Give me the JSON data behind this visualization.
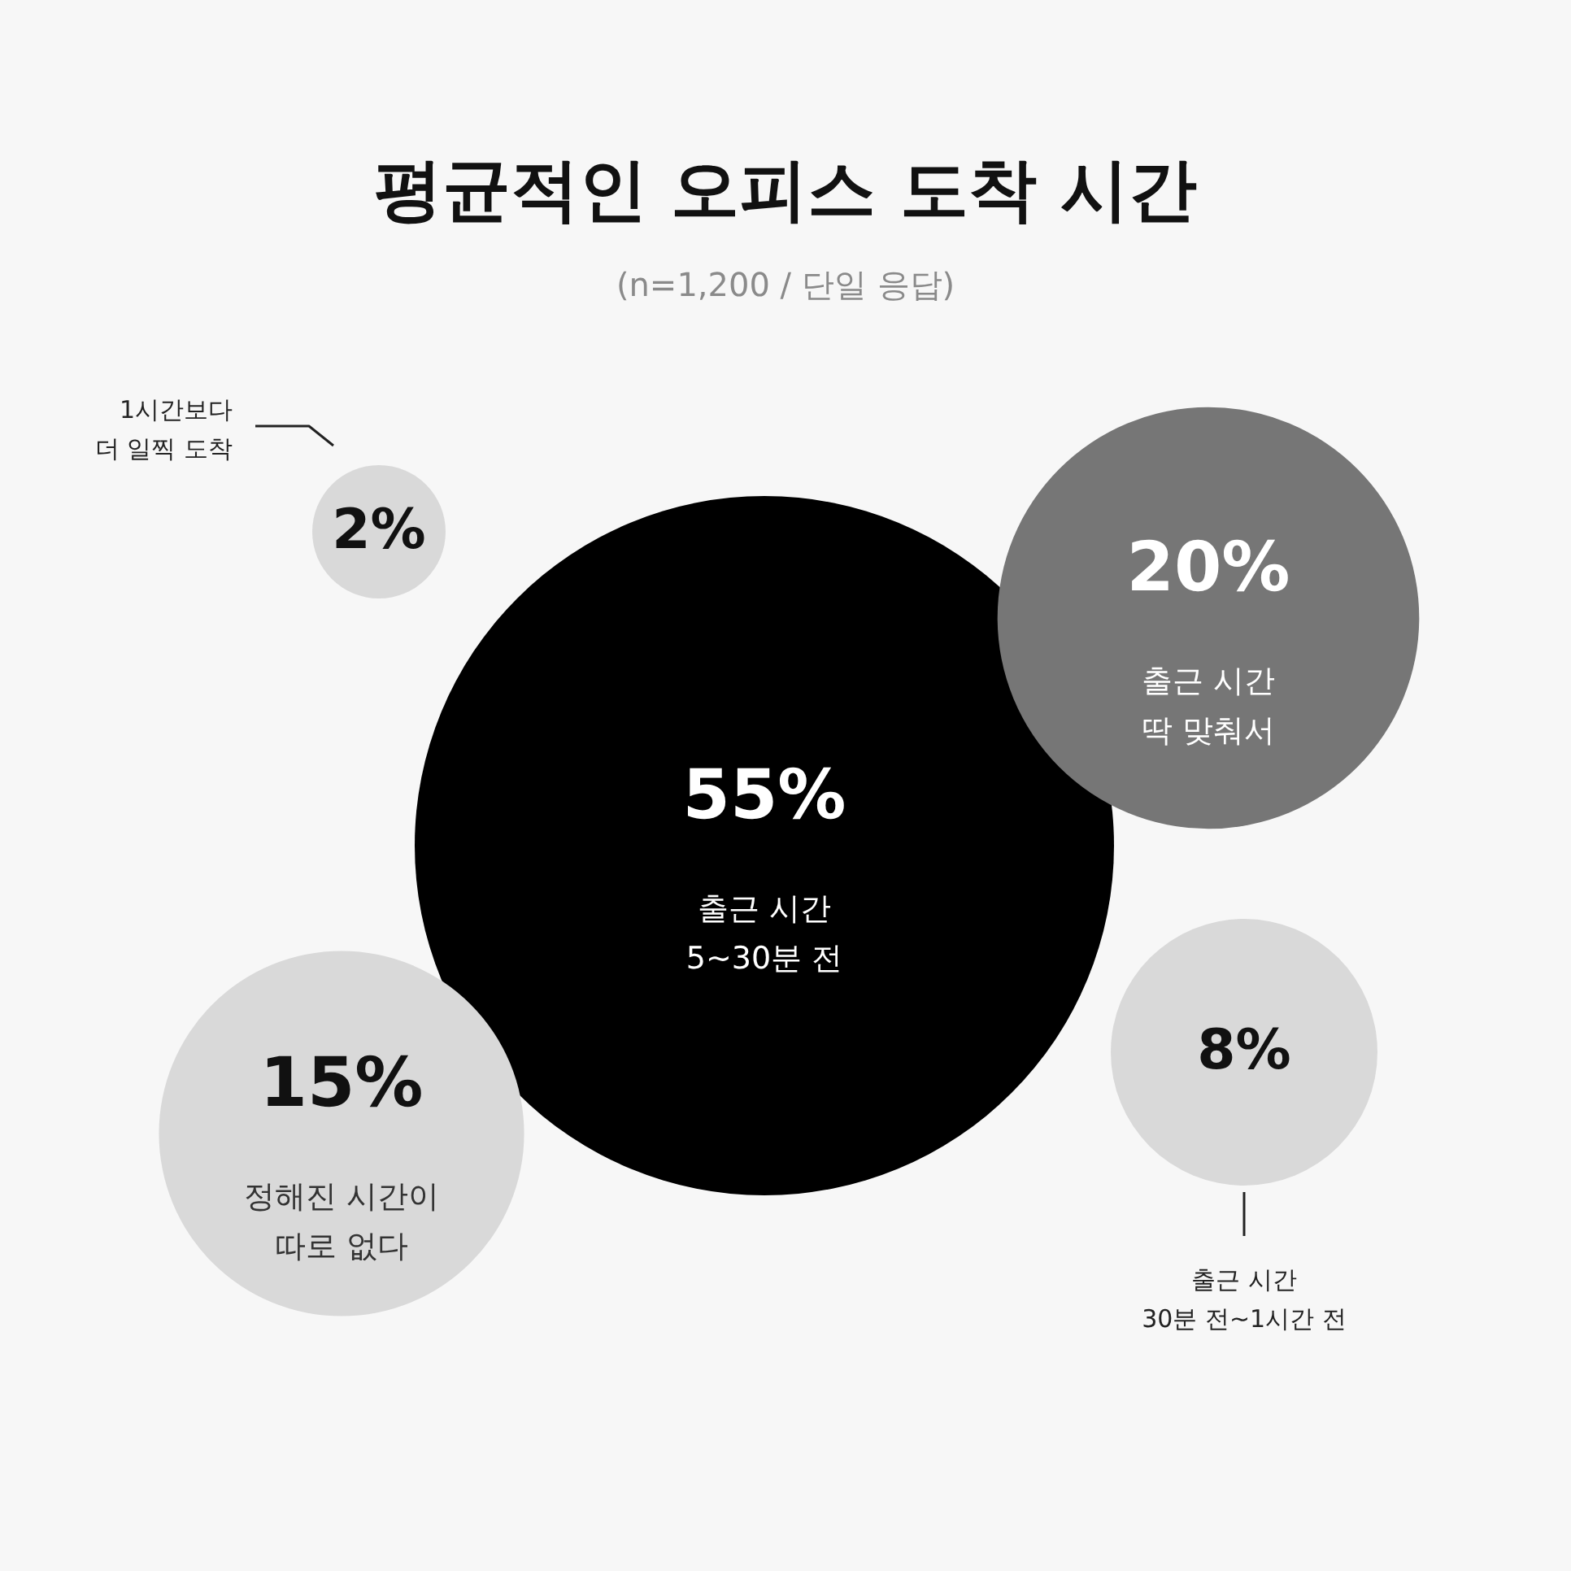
{
  "chart_data": {
    "type": "other",
    "title": "평균적인 오피스 도착 시간",
    "subtitle": "(n=1,200 / 단일 응답)",
    "categories": [
      "1시간보다\n더 일찍 도착",
      "출근 시간\n5~30분 전",
      "출근 시간\n딱 맞춰서",
      "정해진 시간이\n따로 없다",
      "출근 시간\n30분 전~1시간 전"
    ],
    "values": [
      2,
      55,
      20,
      15,
      8
    ],
    "value_labels": [
      "2%",
      "55%",
      "20%",
      "15%",
      "8%"
    ],
    "colors": [
      "#d9d9d9",
      "#000000",
      "#767676",
      "#d9d9d9",
      "#d9d9d9"
    ]
  }
}
